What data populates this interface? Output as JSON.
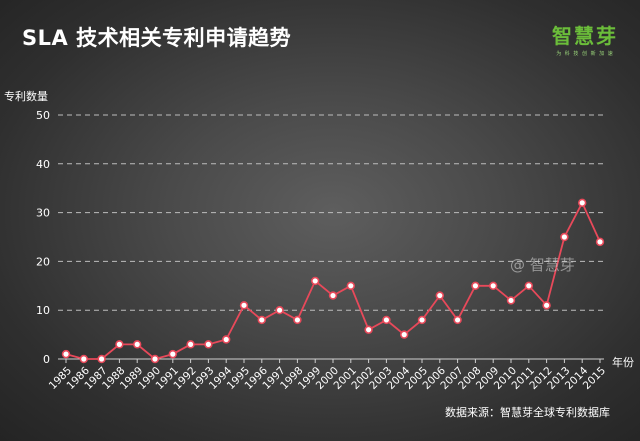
{
  "title": "SLA 技术相关专利申请趋势",
  "logo": {
    "text": "智慧芽",
    "subtext": "为 科 技 创 新 加 速"
  },
  "watermark": "@ 智慧芽",
  "source": "数据来源：智慧芽全球专利数据库",
  "chart_data": {
    "type": "line",
    "title": "SLA 技术相关专利申请趋势",
    "ylabel": "专利数量",
    "xlabel": "年份",
    "ylim": [
      0,
      50
    ],
    "yticks": [
      0,
      10,
      20,
      30,
      40,
      50
    ],
    "grid": true,
    "colors": {
      "line": "#e8495a",
      "marker_fill": "#ffffff",
      "grid": "#bdbdbd"
    },
    "x": [
      "1985",
      "1986",
      "1987",
      "1988",
      "1989",
      "1990",
      "1991",
      "1992",
      "1993",
      "1994",
      "1995",
      "1996",
      "1997",
      "1998",
      "1999",
      "2000",
      "2001",
      "2002",
      "2003",
      "2004",
      "2005",
      "2006",
      "2007",
      "2008",
      "2009",
      "2010",
      "2011",
      "2012",
      "2013",
      "2014",
      "2015"
    ],
    "values": [
      1,
      0,
      0,
      3,
      3,
      0,
      1,
      3,
      3,
      4,
      11,
      8,
      10,
      8,
      16,
      13,
      15,
      6,
      8,
      5,
      8,
      13,
      8,
      15,
      15,
      12,
      15,
      11,
      25,
      32,
      24
    ]
  }
}
